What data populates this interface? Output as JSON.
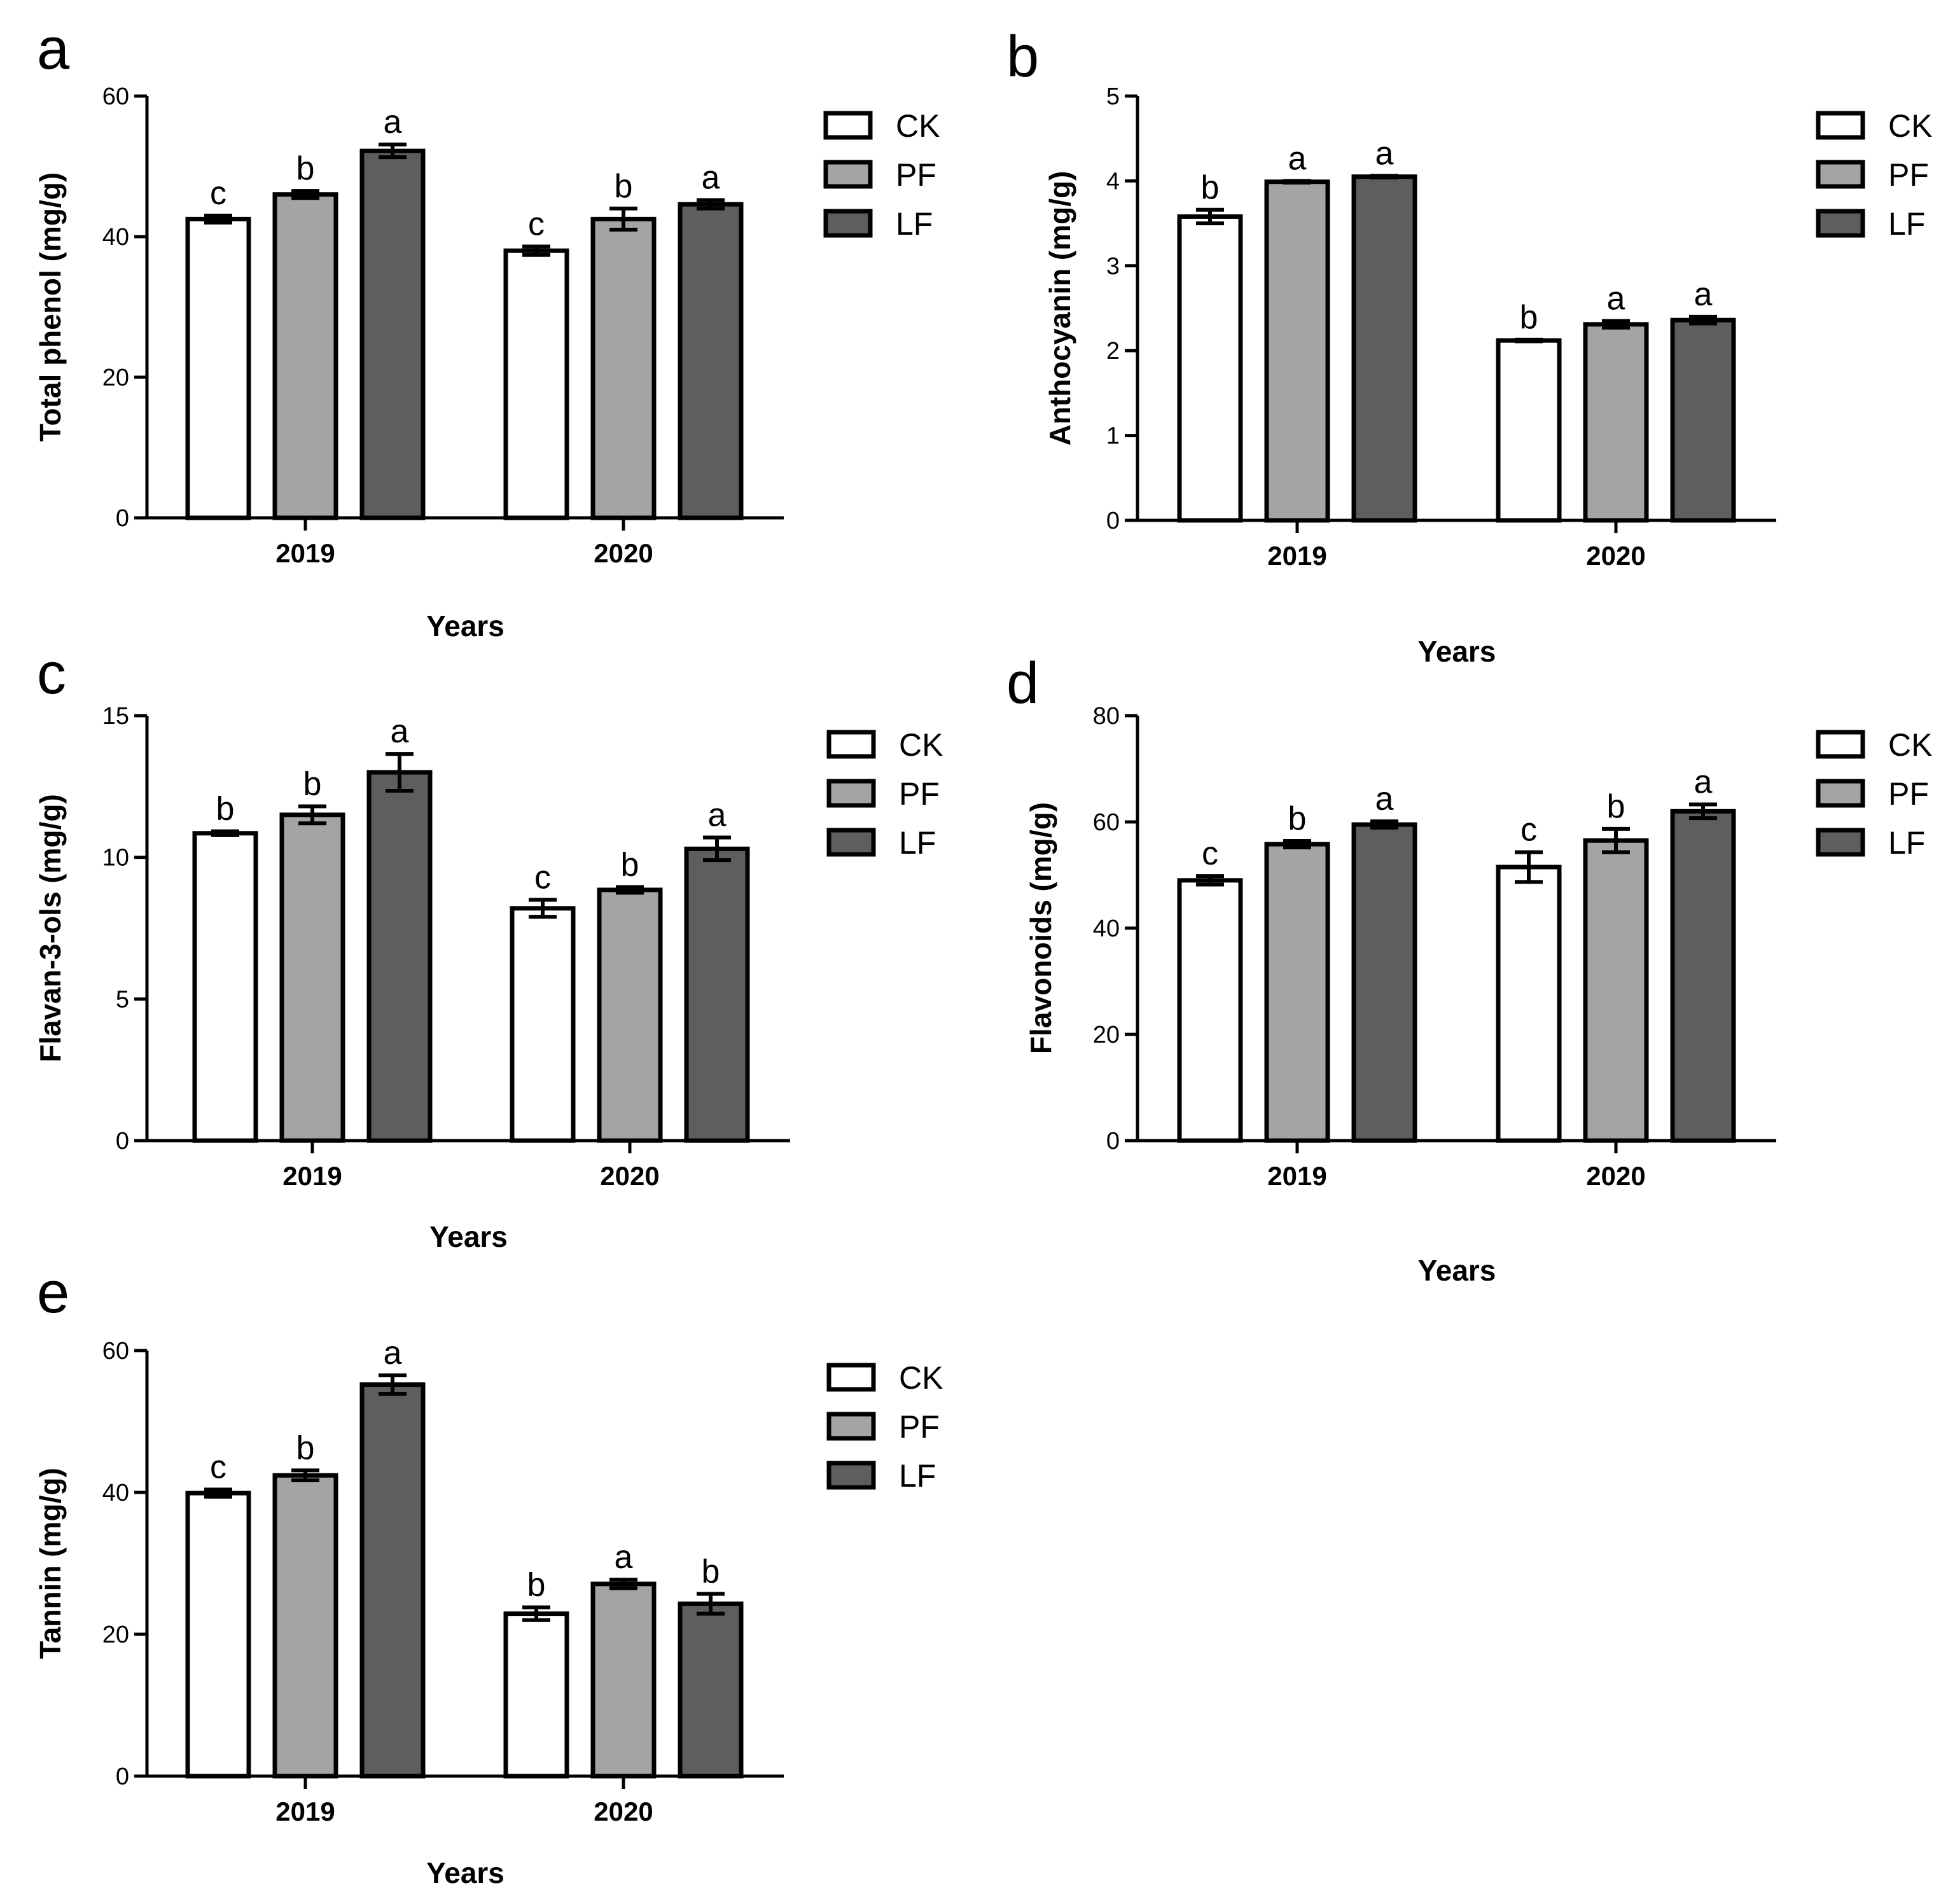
{
  "legend": [
    {
      "name": "CK",
      "color": "#ffffff"
    },
    {
      "name": "PF",
      "color": "#a4a4a7"
    },
    {
      "name": "LF",
      "color": "#5e5e5e"
    }
  ],
  "chart_data": [
    {
      "panel": "a",
      "type": "bar",
      "categories": [
        "2019",
        "2020"
      ],
      "xlabel": "Years",
      "ylabel": "Total phenol (mg/g)",
      "ylim": [
        0,
        60
      ],
      "yticks": [
        0,
        20,
        40,
        60
      ],
      "series": [
        {
          "name": "CK",
          "values": [
            42.5,
            38.0
          ],
          "errors": [
            0.5,
            0.6
          ],
          "labels": [
            "c",
            "c"
          ]
        },
        {
          "name": "PF",
          "values": [
            46.0,
            42.5
          ],
          "errors": [
            0.5,
            1.5
          ],
          "labels": [
            "b",
            "b"
          ]
        },
        {
          "name": "LF",
          "values": [
            52.2,
            44.6
          ],
          "errors": [
            0.9,
            0.6
          ],
          "labels": [
            "a",
            "a"
          ]
        }
      ]
    },
    {
      "panel": "b",
      "type": "bar",
      "categories": [
        "2019",
        "2020"
      ],
      "xlabel": "Years",
      "ylabel": "Anthocyanin (mg/g)",
      "ylim": [
        0,
        5
      ],
      "yticks": [
        0,
        1,
        2,
        3,
        4,
        5
      ],
      "series": [
        {
          "name": "CK",
          "values": [
            3.58,
            2.12
          ],
          "errors": [
            0.08,
            0.01
          ],
          "labels": [
            "b",
            "b"
          ]
        },
        {
          "name": "PF",
          "values": [
            3.99,
            2.31
          ],
          "errors": [
            0.01,
            0.04
          ],
          "labels": [
            "a",
            "a"
          ]
        },
        {
          "name": "LF",
          "values": [
            4.05,
            2.36
          ],
          "errors": [
            0.01,
            0.04
          ],
          "labels": [
            "a",
            "a"
          ]
        }
      ]
    },
    {
      "panel": "c",
      "type": "bar",
      "categories": [
        "2019",
        "2020"
      ],
      "xlabel": "Years",
      "ylabel": "Flavan-3-ols (mg/g)",
      "ylim": [
        0,
        15
      ],
      "yticks": [
        0,
        5,
        10,
        15
      ],
      "series": [
        {
          "name": "CK",
          "values": [
            10.85,
            8.2
          ],
          "errors": [
            0.07,
            0.3
          ],
          "labels": [
            "b",
            "c"
          ]
        },
        {
          "name": "PF",
          "values": [
            11.5,
            8.85
          ],
          "errors": [
            0.3,
            0.1
          ],
          "labels": [
            "b",
            "b"
          ]
        },
        {
          "name": "LF",
          "values": [
            13.0,
            10.3
          ],
          "errors": [
            0.65,
            0.4
          ],
          "labels": [
            "a",
            "a"
          ]
        }
      ]
    },
    {
      "panel": "d",
      "type": "bar",
      "categories": [
        "2019",
        "2020"
      ],
      "xlabel": "Years",
      "ylabel": "Flavonoids (mg/g)",
      "ylim": [
        0,
        80
      ],
      "yticks": [
        0,
        20,
        40,
        60,
        80
      ],
      "series": [
        {
          "name": "CK",
          "values": [
            49.0,
            51.5
          ],
          "errors": [
            0.8,
            2.8
          ],
          "labels": [
            "c",
            "c"
          ]
        },
        {
          "name": "PF",
          "values": [
            55.8,
            56.5
          ],
          "errors": [
            0.6,
            2.2
          ],
          "labels": [
            "b",
            "b"
          ]
        },
        {
          "name": "LF",
          "values": [
            59.5,
            62.0
          ],
          "errors": [
            0.6,
            1.3
          ],
          "labels": [
            "a",
            "a"
          ]
        }
      ]
    },
    {
      "panel": "e",
      "type": "bar",
      "categories": [
        "2019",
        "2020"
      ],
      "xlabel": "Years",
      "ylabel": "Tannin (mg/g)",
      "ylim": [
        0,
        60
      ],
      "yticks": [
        0,
        20,
        40,
        60
      ],
      "series": [
        {
          "name": "CK",
          "values": [
            39.9,
            22.9
          ],
          "errors": [
            0.5,
            0.9
          ],
          "labels": [
            "c",
            "b"
          ]
        },
        {
          "name": "PF",
          "values": [
            42.4,
            27.1
          ],
          "errors": [
            0.7,
            0.6
          ],
          "labels": [
            "b",
            "a"
          ]
        },
        {
          "name": "LF",
          "values": [
            55.2,
            24.3
          ],
          "errors": [
            1.3,
            1.4
          ],
          "labels": [
            "a",
            "b"
          ]
        }
      ]
    }
  ]
}
